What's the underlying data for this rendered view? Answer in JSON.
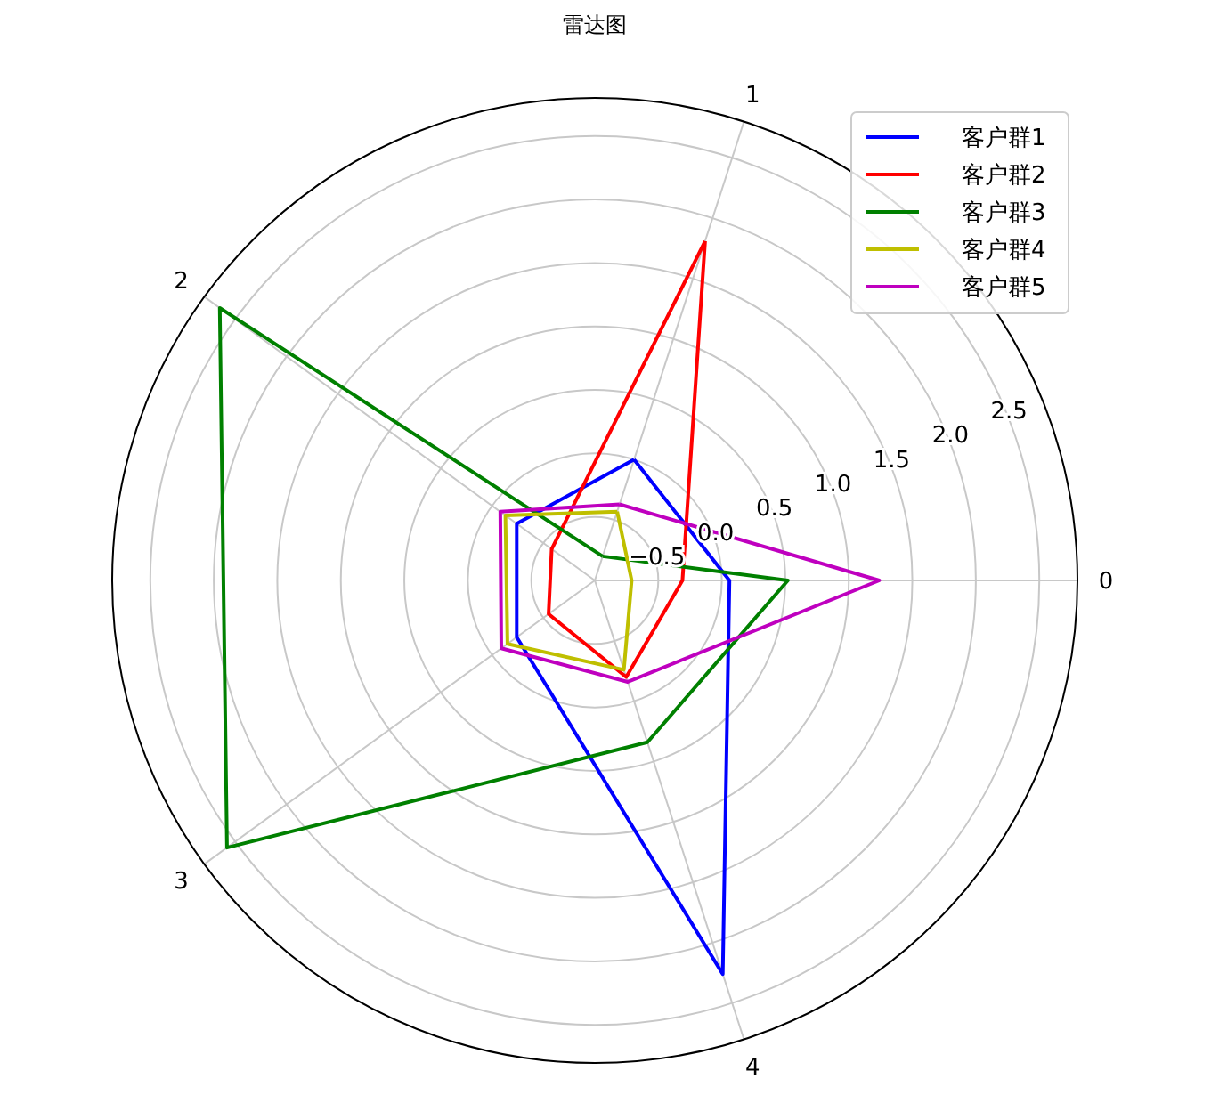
{
  "chart_data": {
    "type": "radar",
    "title": "雷达图",
    "categories": [
      "1",
      "0",
      "4",
      "3",
      "2"
    ],
    "series": [
      {
        "name": "客户群1",
        "color": "#0000ff",
        "values": [
          0.0,
          0.06,
          2.26,
          -0.24,
          -0.24
        ]
      },
      {
        "name": "客户群2",
        "color": "#ff0000",
        "values": [
          1.81,
          -0.31,
          -0.2,
          -0.55,
          -0.58
        ]
      },
      {
        "name": "客户群3",
        "color": "#008000",
        "values": [
          -0.8,
          0.52,
          0.34,
          2.58,
          2.65
        ]
      },
      {
        "name": "客户群4",
        "color": "#bfbf00",
        "values": [
          -0.43,
          -0.71,
          -0.26,
          -0.15,
          -0.13
        ]
      },
      {
        "name": "客户群5",
        "color": "#bf00bf",
        "values": [
          -0.37,
          1.24,
          -0.16,
          -0.09,
          -0.08
        ]
      }
    ],
    "ylim": [
      -1,
      2.8
    ],
    "yticks": [
      -0.5,
      {
        "value": 0,
        "label": "0.0"
      },
      0.5,
      {
        "value": 1,
        "label": "1.0"
      },
      1.5,
      {
        "value": 2,
        "label": "2.0"
      },
      2.5
    ],
    "grid": true,
    "legend": "top right",
    "line_style": "solid",
    "marker": "none"
  }
}
